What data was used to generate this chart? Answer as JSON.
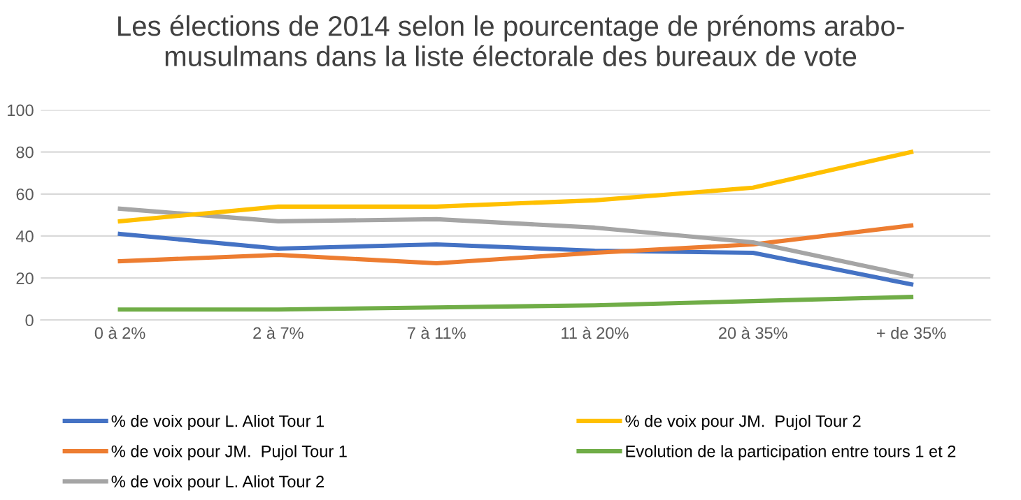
{
  "chart_data": {
    "type": "line",
    "title": "Les élections de 2014 selon le pourcentage de prénoms arabo-\nmusulmans dans la liste électorale des bureaux de vote",
    "categories": [
      "0 à 2%",
      "2 à 7%",
      "7 à 11%",
      "11 à 20%",
      "20 à 35%",
      "+ de 35%"
    ],
    "series": [
      {
        "name": "% de voix pour L. Aliot Tour 1",
        "color": "#4472c4",
        "values": [
          41,
          34,
          36,
          33,
          32,
          17
        ]
      },
      {
        "name": "% de voix pour JM.  Pujol Tour 1",
        "color": "#ed7d31",
        "values": [
          28,
          31,
          27,
          32,
          36,
          45
        ]
      },
      {
        "name": "% de voix pour L. Aliot Tour 2",
        "color": "#a5a5a5",
        "values": [
          53,
          47,
          48,
          44,
          37,
          21
        ]
      },
      {
        "name": "% de voix pour JM.  Pujol Tour 2",
        "color": "#ffc000",
        "values": [
          47,
          54,
          54,
          57,
          63,
          80
        ]
      },
      {
        "name": "Evolution de la participation entre tours 1 et 2",
        "color": "#70ad47",
        "values": [
          5,
          5,
          6,
          7,
          9,
          11
        ]
      }
    ],
    "ylim": [
      0,
      100
    ],
    "yticks": [
      0,
      20,
      40,
      60,
      80,
      100
    ],
    "grid": "y",
    "legend": "bottom",
    "marker": "none",
    "line_style": "solid"
  }
}
